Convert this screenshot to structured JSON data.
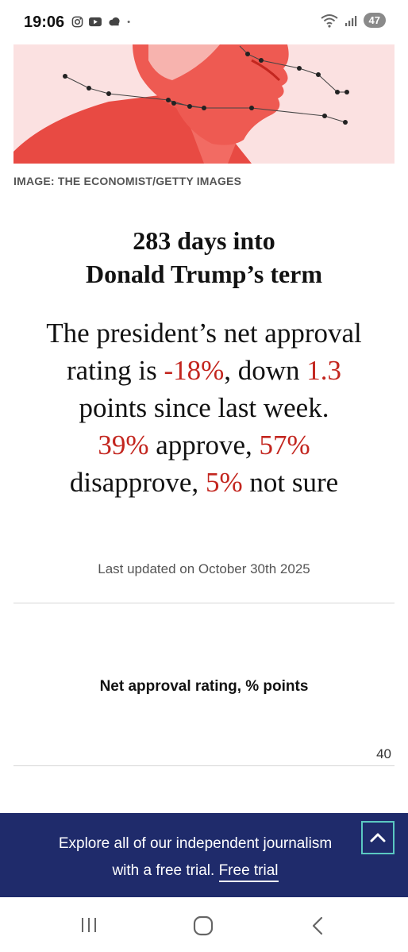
{
  "status_bar": {
    "time": "19:06",
    "battery": "47",
    "icons": [
      "instagram-icon",
      "youtube-icon",
      "cloud-icon",
      "dot-icon",
      "wifi-icon",
      "signal-icon"
    ]
  },
  "hero": {
    "caption": "IMAGE: THE ECONOMIST/GETTY IMAGES"
  },
  "article": {
    "headline_line1": "283 days into",
    "headline_line2": "Donald Trump’s term",
    "summary": {
      "p1": "The president’s net approval rating is ",
      "net_rating": "-18%",
      "p2": ", down ",
      "change": "1.3",
      "p3": " points since last week.",
      "approve": "39%",
      "p4": " approve, ",
      "disapprove": "57%",
      "p5": " disapprove, ",
      "not_sure": "5%",
      "p6": " not sure"
    },
    "last_updated": "Last updated on October 30th 2025"
  },
  "chart": {
    "title": "Net approval rating, % points",
    "top_tick": "40"
  },
  "banner": {
    "text": "Explore all of our independent journalism with a free trial. ",
    "link": "Free trial"
  },
  "colors": {
    "accent_red": "#c3261f",
    "banner_blue": "#1f2b6b",
    "button_teal": "#5bc8c1"
  },
  "nav_bar": {
    "icons": [
      "recent-apps-icon",
      "home-icon",
      "back-icon"
    ]
  }
}
